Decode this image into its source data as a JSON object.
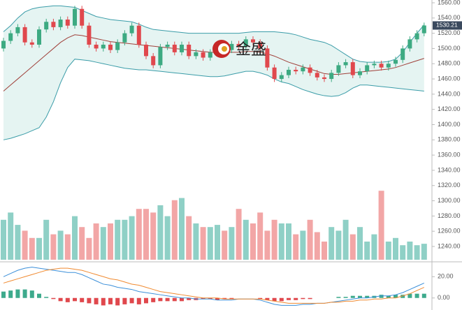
{
  "watermark": "金盛",
  "chart_data": [
    {
      "type": "candlestick",
      "up_color": "#3daa82",
      "down_color": "#e0484d",
      "ylim": [
        1240,
        1560
      ],
      "yticks": [
        {
          "value": 1560,
          "label": "1560.00"
        },
        {
          "value": 1540,
          "label": "1540.00"
        },
        {
          "value": 1520,
          "label": "1520.00"
        },
        {
          "value": 1500,
          "label": "1500.00"
        },
        {
          "value": 1480,
          "label": "1480.00"
        },
        {
          "value": 1460,
          "label": "1460.00"
        },
        {
          "value": 1440,
          "label": "1440.00"
        },
        {
          "value": 1420,
          "label": "1420.00"
        },
        {
          "value": 1400,
          "label": "1400.00"
        },
        {
          "value": 1380,
          "label": "1380.00"
        },
        {
          "value": 1360,
          "label": "1360.00"
        },
        {
          "value": 1340,
          "label": "1340.00"
        },
        {
          "value": 1320,
          "label": "1320.00"
        },
        {
          "value": 1300,
          "label": "1300.00"
        },
        {
          "value": 1280,
          "label": "1280.00"
        },
        {
          "value": 1260,
          "label": "1260.00"
        },
        {
          "value": 1240,
          "label": "1240.00"
        }
      ],
      "open": [
        1500,
        1510,
        1520,
        1528,
        1508,
        1505,
        1525,
        1535,
        1528,
        1538,
        1530,
        1552,
        1530,
        1505,
        1500,
        1505,
        1498,
        1508,
        1520,
        1530,
        1505,
        1490,
        1478,
        1502,
        1505,
        1495,
        1505,
        1490,
        1495,
        1488,
        1495,
        1502,
        1498,
        1506,
        1503,
        1512,
        1508,
        1500,
        1475,
        1460,
        1465,
        1472,
        1470,
        1475,
        1468,
        1462,
        1460,
        1468,
        1478,
        1482,
        1465,
        1470,
        1478,
        1480,
        1475,
        1480,
        1485,
        1500,
        1512,
        1520
      ],
      "high": [
        1514,
        1524,
        1532,
        1532,
        1512,
        1529,
        1539,
        1539,
        1542,
        1542,
        1556,
        1556,
        1534,
        1509,
        1509,
        1509,
        1512,
        1524,
        1534,
        1534,
        1509,
        1494,
        1506,
        1509,
        1509,
        1509,
        1509,
        1499,
        1499,
        1499,
        1506,
        1506,
        1510,
        1510,
        1516,
        1516,
        1512,
        1504,
        1479,
        1469,
        1476,
        1476,
        1479,
        1479,
        1472,
        1466,
        1472,
        1482,
        1486,
        1486,
        1474,
        1482,
        1484,
        1484,
        1484,
        1489,
        1504,
        1516,
        1524,
        1534
      ],
      "low": [
        1496,
        1506,
        1516,
        1504,
        1501,
        1501,
        1521,
        1524,
        1524,
        1526,
        1526,
        1526,
        1501,
        1496,
        1496,
        1494,
        1494,
        1504,
        1516,
        1501,
        1486,
        1474,
        1474,
        1498,
        1491,
        1491,
        1486,
        1486,
        1484,
        1484,
        1491,
        1494,
        1494,
        1499,
        1499,
        1504,
        1496,
        1471,
        1456,
        1456,
        1461,
        1466,
        1466,
        1464,
        1458,
        1456,
        1456,
        1464,
        1474,
        1461,
        1461,
        1466,
        1474,
        1471,
        1471,
        1476,
        1481,
        1496,
        1508,
        1516
      ],
      "close": [
        1510,
        1520,
        1528,
        1508,
        1505,
        1525,
        1535,
        1528,
        1538,
        1530,
        1552,
        1530,
        1505,
        1500,
        1505,
        1498,
        1508,
        1520,
        1530,
        1505,
        1490,
        1478,
        1502,
        1505,
        1495,
        1505,
        1490,
        1495,
        1488,
        1495,
        1502,
        1498,
        1506,
        1503,
        1512,
        1508,
        1500,
        1475,
        1460,
        1465,
        1472,
        1470,
        1475,
        1468,
        1462,
        1460,
        1468,
        1478,
        1482,
        1465,
        1470,
        1478,
        1480,
        1475,
        1480,
        1485,
        1500,
        1512,
        1520,
        1530.21
      ],
      "bands": [
        {
          "color": "#3a9ca8",
          "values": [
            1522,
            1530,
            1540,
            1548,
            1552,
            1554,
            1555,
            1556,
            1556,
            1555,
            1554,
            1550,
            1546,
            1542,
            1540,
            1538,
            1537,
            1536,
            1535,
            1532,
            1528,
            1525,
            1524,
            1523,
            1522,
            1521,
            1520,
            1520,
            1520,
            1520,
            1520,
            1520,
            1520,
            1520,
            1521,
            1522,
            1522,
            1522,
            1522,
            1521,
            1520,
            1518,
            1515,
            1512,
            1510,
            1508,
            1504,
            1498,
            1492,
            1486,
            1483,
            1482,
            1482,
            1482,
            1483,
            1486,
            1495,
            1508,
            1520,
            1531
          ]
        },
        {
          "color": "#a0403a",
          "values": [
            1444,
            1452,
            1460,
            1468,
            1476,
            1484,
            1492,
            1500,
            1508,
            1514,
            1518,
            1517,
            1515,
            1513,
            1511,
            1509,
            1508,
            1507,
            1506,
            1505,
            1504,
            1503,
            1502,
            1501,
            1500,
            1499,
            1498,
            1497,
            1496,
            1495,
            1495,
            1495,
            1495,
            1495,
            1496,
            1496,
            1495,
            1493,
            1490,
            1486,
            1482,
            1479,
            1476,
            1473,
            1470,
            1467,
            1466,
            1466,
            1467,
            1468,
            1469,
            1470,
            1471,
            1472,
            1473,
            1475,
            1478,
            1481,
            1484,
            1487
          ]
        },
        {
          "color": "#3a9ca8",
          "values": [
            1380,
            1382,
            1385,
            1388,
            1392,
            1396,
            1410,
            1430,
            1455,
            1475,
            1486,
            1485,
            1484,
            1482,
            1480,
            1478,
            1476,
            1474,
            1473,
            1472,
            1472,
            1471,
            1470,
            1469,
            1468,
            1467,
            1466,
            1465,
            1464,
            1463,
            1463,
            1464,
            1466,
            1468,
            1470,
            1470,
            1468,
            1465,
            1460,
            1456,
            1454,
            1450,
            1446,
            1443,
            1440,
            1438,
            1437,
            1438,
            1442,
            1448,
            1452,
            1452,
            1451,
            1450,
            1449,
            1448,
            1447,
            1446,
            1445,
            1444
          ]
        }
      ]
    },
    {
      "type": "bar",
      "up_color": "#8fd0c6",
      "down_color": "#f2a6a6",
      "ylim": [
        0,
        100
      ],
      "values": [
        55,
        65,
        48,
        40,
        30,
        30,
        55,
        35,
        40,
        35,
        60,
        45,
        30,
        50,
        45,
        50,
        55,
        55,
        60,
        70,
        70,
        65,
        75,
        60,
        82,
        85,
        60,
        50,
        45,
        45,
        48,
        40,
        45,
        70,
        55,
        50,
        65,
        40,
        55,
        50,
        50,
        35,
        40,
        55,
        38,
        25,
        45,
        40,
        55,
        35,
        45,
        25,
        35,
        95,
        25,
        30,
        20,
        25,
        20,
        22
      ]
    },
    {
      "type": "line",
      "ylim": [
        -10,
        32
      ],
      "yticks": [
        {
          "value": 20,
          "label": "20.00"
        },
        {
          "value": 0,
          "label": "0.00"
        }
      ],
      "series": [
        {
          "color": "#3b8fd9",
          "values": [
            20,
            23,
            26,
            28,
            29,
            28,
            27,
            26,
            25,
            24,
            24,
            22,
            19,
            16,
            13,
            12,
            10,
            9,
            8,
            6,
            5,
            4,
            3,
            2,
            1,
            0,
            0,
            -1,
            -1,
            -1,
            -2,
            -2,
            -2,
            -1,
            -1,
            -1,
            -2,
            -4,
            -6,
            -7,
            -7,
            -7,
            -6,
            -6,
            -5,
            -5,
            -4,
            -3,
            -2,
            -1,
            0,
            0,
            1,
            2,
            2,
            3,
            5,
            8,
            11,
            14
          ]
        },
        {
          "color": "#f08a30",
          "values": [
            14,
            16,
            18,
            20,
            22,
            24,
            26,
            27,
            28,
            28,
            27,
            26,
            24,
            22,
            20,
            18,
            17,
            15,
            13,
            12,
            10,
            8,
            6,
            5,
            4,
            3,
            2,
            1,
            0,
            0,
            0,
            -1,
            -1,
            -1,
            -1,
            -1,
            -1,
            -2,
            -3,
            -4,
            -5,
            -5,
            -5,
            -5,
            -5,
            -5,
            -4,
            -4,
            -3,
            -3,
            -2,
            -2,
            -1,
            -1,
            0,
            0,
            2,
            4,
            7,
            10
          ]
        }
      ],
      "histogram": {
        "up_color": "#3daa8c",
        "down_color": "#e0484d",
        "values": [
          6,
          7,
          8,
          8,
          7,
          4,
          1,
          -1,
          -3,
          -4,
          -3,
          -4,
          -5,
          -6,
          -7,
          -6,
          -7,
          -6,
          -5,
          -6,
          -5,
          -4,
          -3,
          -3,
          -3,
          -3,
          -2,
          -2,
          -1,
          -1,
          -2,
          -1,
          -1,
          0,
          0,
          0,
          -1,
          -2,
          -3,
          -3,
          -2,
          -2,
          -1,
          -1,
          0,
          0,
          0,
          1,
          1,
          2,
          2,
          2,
          2,
          3,
          2,
          3,
          3,
          4,
          4,
          4
        ]
      }
    }
  ]
}
